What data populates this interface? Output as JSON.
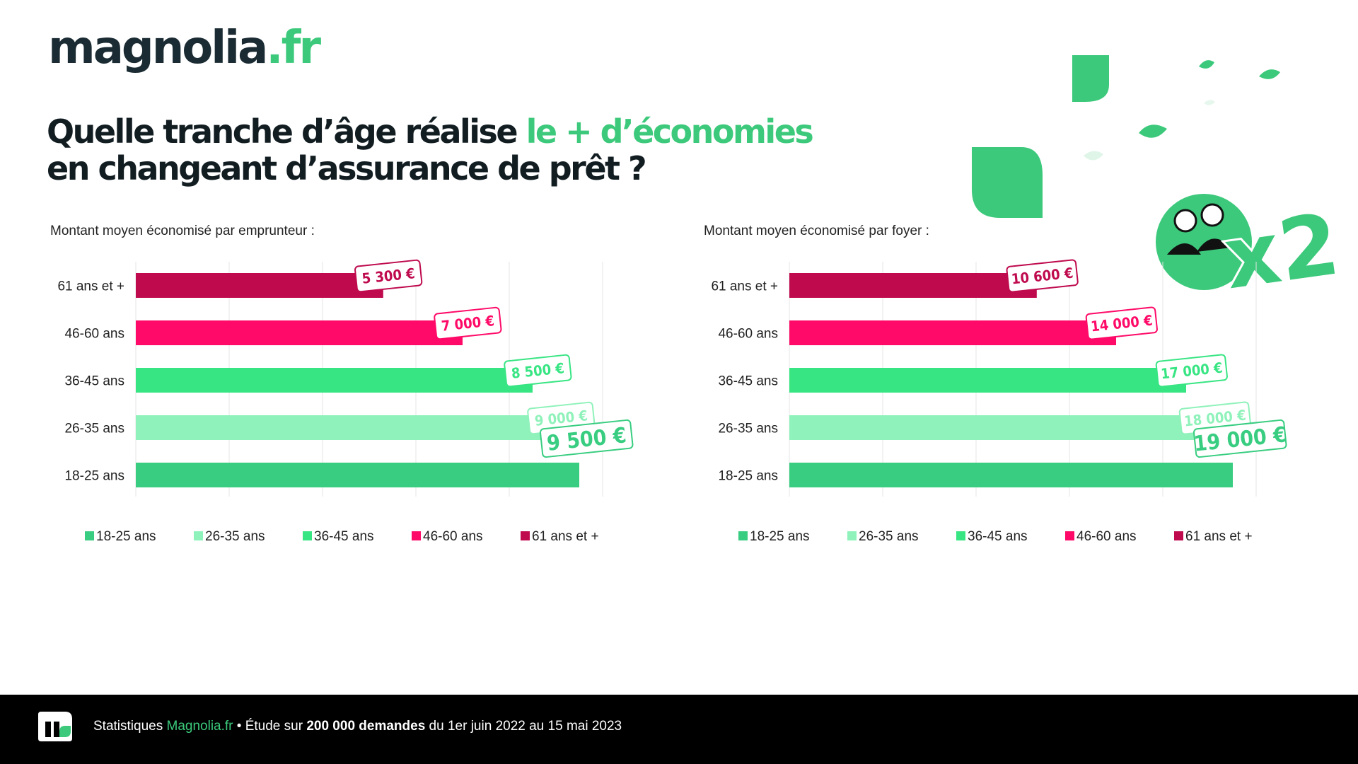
{
  "brand": {
    "name": "magnolia",
    "tld": ".fr"
  },
  "headline": {
    "part1": "Quelle tranche d’âge réalise ",
    "accent": "le + d’économies",
    "line2": "en changeant d’assurance de prêt ?"
  },
  "decoration": {
    "multiplier": "x2"
  },
  "colors": {
    "18-25 ans": "#38cd80",
    "26-35 ans": "#8ff2ba",
    "36-45 ans": "#38e583",
    "46-60 ans": "#ff0a68",
    "61 ans et +": "#bf0a4e"
  },
  "chart_data": [
    {
      "type": "bar",
      "orientation": "horizontal",
      "title": "Montant moyen économisé par emprunteur :",
      "categories": [
        "61 ans et +",
        "46-60 ans",
        "36-45 ans",
        "26-35 ans",
        "18-25 ans"
      ],
      "values": [
        5300,
        7000,
        8500,
        9000,
        9500
      ],
      "value_labels": [
        "5 300 €",
        "7 000 €",
        "8 500 €",
        "9 000 €",
        "9 500 €"
      ],
      "xlim": [
        0,
        10000
      ],
      "grid": true,
      "legend_position": "bottom",
      "legend": [
        "18-25 ans",
        "26-35 ans",
        "36-45 ans",
        "46-60 ans",
        "61 ans et +"
      ]
    },
    {
      "type": "bar",
      "orientation": "horizontal",
      "title": "Montant moyen économisé par foyer :",
      "categories": [
        "61 ans et +",
        "46-60 ans",
        "36-45 ans",
        "26-35 ans",
        "18-25 ans"
      ],
      "values": [
        10600,
        14000,
        17000,
        18000,
        19000
      ],
      "value_labels": [
        "10 600 €",
        "14 000 €",
        "17 000 €",
        "18 000 €",
        "19 000 €"
      ],
      "xlim": [
        0,
        20000
      ],
      "grid": true,
      "legend_position": "bottom",
      "legend": [
        "18-25 ans",
        "26-35 ans",
        "36-45 ans",
        "46-60 ans",
        "61 ans et +"
      ]
    }
  ],
  "footer": {
    "prefix": "Statistiques ",
    "brand": "Magnolia.fr",
    "mid": " • Étude sur ",
    "bold": "200 000 demandes",
    "suffix": " du 1er juin 2022 au 15 mai 2023"
  }
}
